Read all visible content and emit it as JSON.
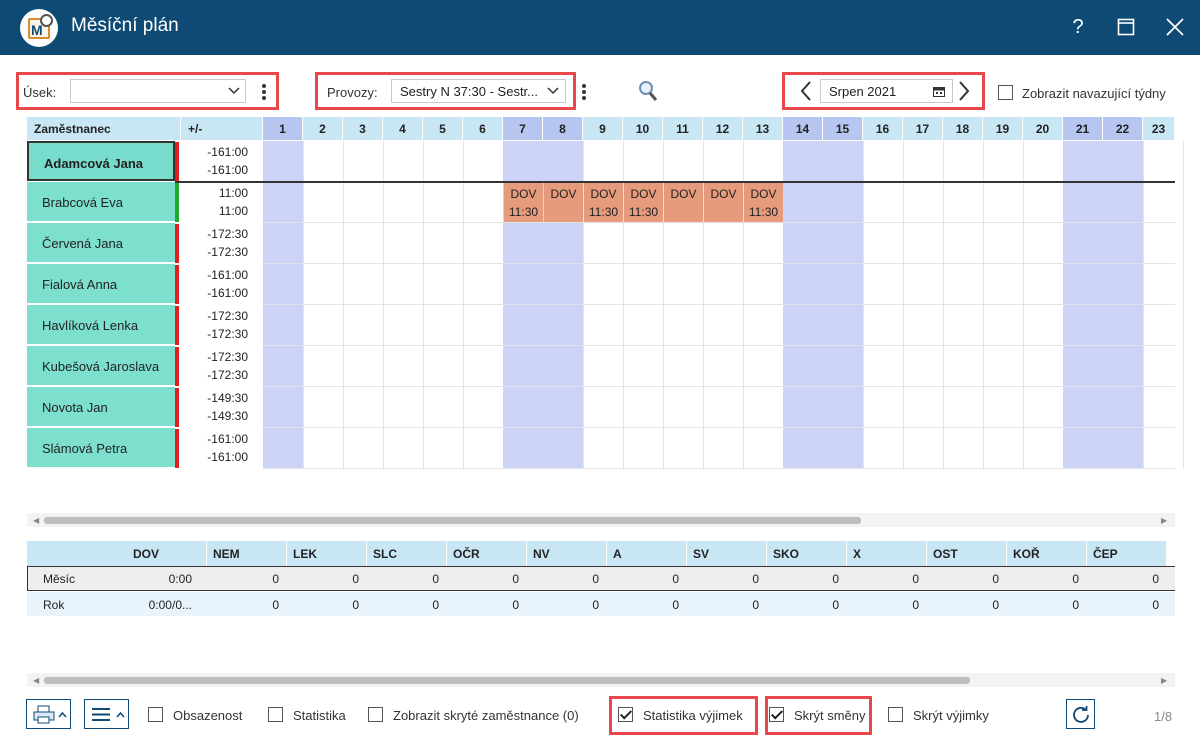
{
  "window": {
    "title": "Měsíční plán",
    "help": "?",
    "maximize": "☐",
    "close": "✕"
  },
  "filters": {
    "usek_label": "Úsek:",
    "usek_value": "",
    "provozy_label": "Provozy:",
    "provozy_value": "Sestry N 37:30 - Sestr...",
    "month_value": "Srpen 2021",
    "show_following_weeks": "Zobrazit navazující týdny"
  },
  "plan": {
    "col_employee": "Zaměstnanec",
    "col_balance": "+/-",
    "days": [
      "1",
      "2",
      "3",
      "4",
      "5",
      "6",
      "7",
      "8",
      "9",
      "10",
      "11",
      "12",
      "13",
      "14",
      "15",
      "16",
      "17",
      "18",
      "19",
      "20",
      "21",
      "22",
      "23"
    ],
    "weekend_days": [
      1,
      7,
      8,
      14,
      15,
      21,
      22
    ],
    "employees": [
      {
        "name": "Adamcová Jana",
        "bal1": "-161:00",
        "bal2": "-161:00",
        "status": "red",
        "selected": true
      },
      {
        "name": "Brabcová Eva",
        "bal1": "11:00",
        "bal2": "11:00",
        "status": "green",
        "selected": false
      },
      {
        "name": "Červená Jana",
        "bal1": "-172:30",
        "bal2": "-172:30",
        "status": "red",
        "selected": false
      },
      {
        "name": "Fialová Anna",
        "bal1": "-161:00",
        "bal2": "-161:00",
        "status": "red",
        "selected": false
      },
      {
        "name": "Havlíková Lenka",
        "bal1": "-172:30",
        "bal2": "-172:30",
        "status": "red",
        "selected": false
      },
      {
        "name": "Kubešová Jaroslava",
        "bal1": "-172:30",
        "bal2": "-172:30",
        "status": "red",
        "selected": false
      },
      {
        "name": "Novota Jan",
        "bal1": "-149:30",
        "bal2": "-149:30",
        "status": "red",
        "selected": false
      },
      {
        "name": "Slámová Petra",
        "bal1": "-161:00",
        "bal2": "-161:00",
        "status": "red",
        "selected": false
      }
    ],
    "shifts": [
      {
        "day": 7,
        "code": "DOV",
        "time": "11:30"
      },
      {
        "day": 8,
        "code": "DOV",
        "time": ""
      },
      {
        "day": 9,
        "code": "DOV",
        "time": "11:30"
      },
      {
        "day": 10,
        "code": "DOV",
        "time": "11:30"
      },
      {
        "day": 11,
        "code": "DOV",
        "time": ""
      },
      {
        "day": 12,
        "code": "DOV",
        "time": ""
      },
      {
        "day": 13,
        "code": "DOV",
        "time": "11:30"
      }
    ]
  },
  "stats": {
    "columns": [
      "DOV",
      "NEM",
      "LEK",
      "SLC",
      "OČR",
      "NV",
      "A",
      "SV",
      "SKO",
      "X",
      "OST",
      "KOŘ",
      "ČEP"
    ],
    "rows": [
      {
        "label": "Měsíc",
        "values": [
          "0:00",
          "0",
          "0",
          "0",
          "0",
          "0",
          "0",
          "0",
          "0",
          "0",
          "0",
          "0",
          "0"
        ]
      },
      {
        "label": "Rok",
        "values": [
          "0:00/0...",
          "0",
          "0",
          "0",
          "0",
          "0",
          "0",
          "0",
          "0",
          "0",
          "0",
          "0",
          "0"
        ]
      }
    ]
  },
  "bottom": {
    "obsazenost": "Obsazenost",
    "statistika": "Statistika",
    "skryte": "Zobrazit skryté zaměstnance (0)",
    "statistika_vyjimek": "Statistika výjimek",
    "skryt_smeny": "Skrýt směny",
    "skryt_vyjimky": "Skrýt výjimky",
    "page": "1/8"
  }
}
